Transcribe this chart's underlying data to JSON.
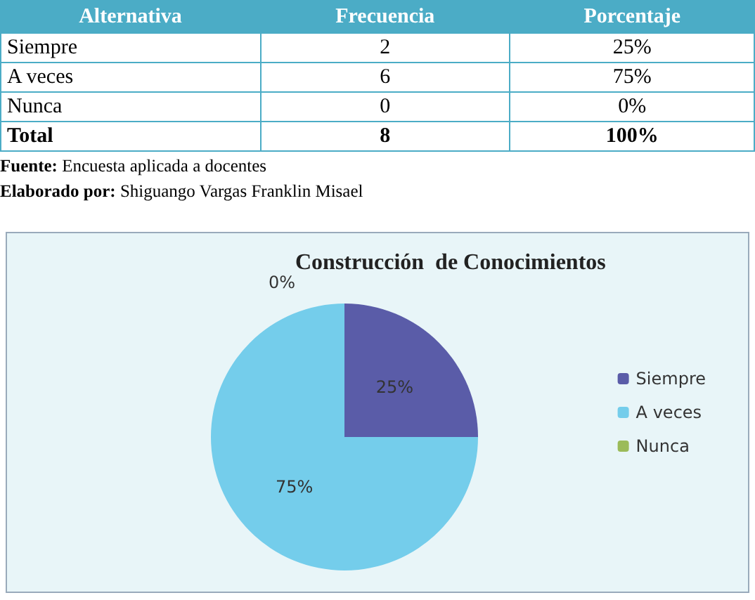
{
  "chart_data": [
    {
      "type": "other",
      "data_labels": true,
      "xlabel": "Alternativa",
      "categories": [
        "Siempre",
        "A veces",
        "Nunca",
        "Total"
      ],
      "series": [
        {
          "name": "Frecuencia",
          "values": [
            2,
            6,
            0,
            8
          ]
        },
        {
          "name": "Porcentaje",
          "values": [
            25,
            75,
            0,
            100
          ],
          "value_labels": [
            "25%",
            "75%",
            "0%",
            "100%"
          ]
        }
      ],
      "annotations": [
        "Fuente: Encuesta aplicada a docentes",
        "Elaborado por: Shiguango Vargas Franklin Misael"
      ]
    },
    {
      "type": "pie",
      "title": "Construcción  de Conocimientos",
      "categories": [
        "Siempre",
        "A veces",
        "Nunca"
      ],
      "values": [
        25,
        75,
        0
      ],
      "colors": [
        "#5a5ca8",
        "#74cdeb",
        "#9bbb59"
      ],
      "value_labels": [
        "25%",
        "75%",
        "0%"
      ],
      "legend": "right"
    }
  ]
}
